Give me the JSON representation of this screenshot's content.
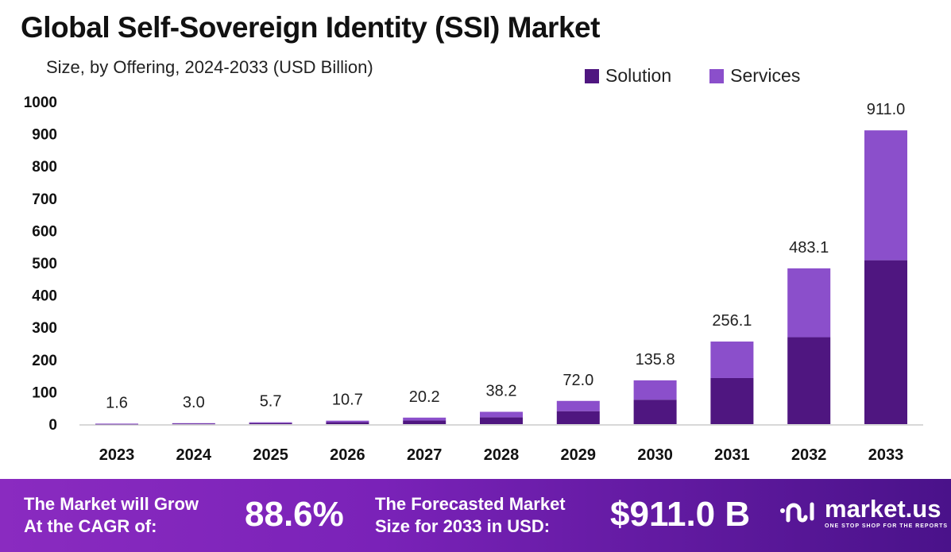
{
  "chart_data": {
    "type": "bar",
    "stacked": true,
    "title": "Global Self-Sovereign Identity (SSI) Market",
    "subtitle": "Size, by Offering, 2024-2033 (USD Billion)",
    "categories": [
      "2023",
      "2024",
      "2025",
      "2026",
      "2027",
      "2028",
      "2029",
      "2030",
      "2031",
      "2032",
      "2033"
    ],
    "totals": [
      1.6,
      3.0,
      5.7,
      10.7,
      20.2,
      38.2,
      72.0,
      135.8,
      256.1,
      483.1,
      911.0
    ],
    "total_labels": [
      "1.6",
      "3.0",
      "5.7",
      "10.7",
      "20.2",
      "38.2",
      "72.0",
      "135.8",
      "256.1",
      "483.1",
      "911.0"
    ],
    "series": [
      {
        "name": "Solution",
        "color": "#4f1680",
        "values": [
          0.9,
          1.7,
          3.2,
          6.0,
          11.3,
          21.3,
          40.2,
          75.8,
          142.9,
          269.6,
          508.3
        ]
      },
      {
        "name": "Services",
        "color": "#8b4fcb",
        "values": [
          0.7,
          1.3,
          2.5,
          4.7,
          8.9,
          16.9,
          31.8,
          60.0,
          113.2,
          213.5,
          402.7
        ]
      }
    ],
    "ylim": [
      0,
      1000
    ],
    "yticks": [
      "0",
      "100",
      "200",
      "300",
      "400",
      "500",
      "600",
      "700",
      "800",
      "900",
      "1000"
    ],
    "grid": false,
    "legend_position": "top-right"
  },
  "footer": {
    "cagr_label_1": "The Market will Grow",
    "cagr_label_2": "At the CAGR of:",
    "cagr_value": "88.6%",
    "forecast_label_1": "The Forecasted Market",
    "forecast_label_2": "Size for 2033 in USD:",
    "forecast_value": "$911.0 B",
    "logo_name": "market.us",
    "logo_tagline": "ONE STOP SHOP FOR THE REPORTS"
  }
}
